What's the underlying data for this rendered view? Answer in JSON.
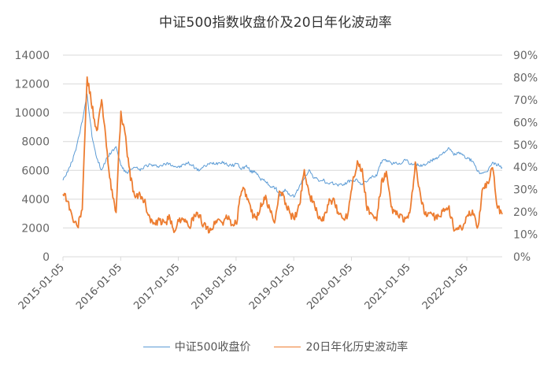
{
  "chart_data": {
    "type": "line",
    "title": "中证500指数收盘价及20日年化波动率",
    "xlabel": "",
    "ylabel_left": "",
    "ylabel_right": "",
    "x_tick_labels": [
      "2015-01-05",
      "2016-01-05",
      "2017-01-05",
      "2018-01-05",
      "2019-01-05",
      "2020-01-05",
      "2021-01-05",
      "2022-01-05"
    ],
    "y_left_ticks": [
      "0",
      "2000",
      "4000",
      "6000",
      "8000",
      "10000",
      "12000",
      "14000"
    ],
    "y_right_ticks": [
      "0%",
      "10%",
      "20%",
      "30%",
      "40%",
      "50%",
      "60%",
      "70%",
      "80%",
      "90%"
    ],
    "ylim_left": [
      0,
      14000
    ],
    "ylim_right": [
      0,
      0.9
    ],
    "grid": true,
    "legend_position": "bottom",
    "x": [
      "2015-01",
      "2015-02",
      "2015-03",
      "2015-04",
      "2015-05",
      "2015-06",
      "2015-07",
      "2015-08",
      "2015-09",
      "2015-10",
      "2015-11",
      "2015-12",
      "2016-01",
      "2016-02",
      "2016-03",
      "2016-04",
      "2016-05",
      "2016-06",
      "2016-07",
      "2016-08",
      "2016-09",
      "2016-10",
      "2016-11",
      "2016-12",
      "2017-01",
      "2017-02",
      "2017-03",
      "2017-04",
      "2017-05",
      "2017-06",
      "2017-07",
      "2017-08",
      "2017-09",
      "2017-10",
      "2017-11",
      "2017-12",
      "2018-01",
      "2018-02",
      "2018-03",
      "2018-04",
      "2018-05",
      "2018-06",
      "2018-07",
      "2018-08",
      "2018-09",
      "2018-10",
      "2018-11",
      "2018-12",
      "2019-01",
      "2019-02",
      "2019-03",
      "2019-04",
      "2019-05",
      "2019-06",
      "2019-07",
      "2019-08",
      "2019-09",
      "2019-10",
      "2019-11",
      "2019-12",
      "2020-01",
      "2020-02",
      "2020-03",
      "2020-04",
      "2020-05",
      "2020-06",
      "2020-07",
      "2020-08",
      "2020-09",
      "2020-10",
      "2020-11",
      "2020-12",
      "2021-01",
      "2021-02",
      "2021-03",
      "2021-04",
      "2021-05",
      "2021-06",
      "2021-07",
      "2021-08",
      "2021-09",
      "2021-10",
      "2021-11",
      "2021-12",
      "2022-01",
      "2022-02",
      "2022-03",
      "2022-04",
      "2022-05",
      "2022-06",
      "2022-07",
      "2022-08"
    ],
    "series": [
      {
        "name": "中证500收盘价",
        "axis": "left",
        "color": "#5b9bd5",
        "values": [
          5400,
          5900,
          6700,
          7900,
          9400,
          11300,
          8400,
          6900,
          6000,
          6800,
          7300,
          7600,
          6400,
          5800,
          6000,
          6200,
          6000,
          6300,
          6400,
          6300,
          6300,
          6400,
          6500,
          6300,
          6200,
          6400,
          6500,
          6300,
          6000,
          6200,
          6400,
          6500,
          6500,
          6600,
          6400,
          6300,
          6500,
          6100,
          6300,
          5900,
          5900,
          5400,
          5200,
          4900,
          4800,
          4300,
          4600,
          4300,
          4200,
          4900,
          5500,
          6000,
          5500,
          5300,
          5300,
          5000,
          5100,
          5000,
          5000,
          5200,
          5300,
          5300,
          5000,
          5300,
          5500,
          5700,
          6600,
          6700,
          6500,
          6500,
          6500,
          6800,
          6400,
          6500,
          6300,
          6400,
          6600,
          6800,
          7000,
          7300,
          7500,
          7100,
          7200,
          7000,
          6800,
          6600,
          5900,
          5700,
          6000,
          6500,
          6400,
          6200
        ]
      },
      {
        "name": "20日年化历史波动率",
        "axis": "right",
        "color": "#ed7d31",
        "values": [
          0.29,
          0.25,
          0.17,
          0.13,
          0.22,
          0.8,
          0.68,
          0.55,
          0.7,
          0.5,
          0.3,
          0.2,
          0.65,
          0.52,
          0.35,
          0.26,
          0.28,
          0.24,
          0.17,
          0.14,
          0.16,
          0.15,
          0.17,
          0.12,
          0.16,
          0.18,
          0.13,
          0.17,
          0.19,
          0.15,
          0.12,
          0.13,
          0.17,
          0.15,
          0.18,
          0.14,
          0.16,
          0.31,
          0.27,
          0.2,
          0.17,
          0.23,
          0.26,
          0.2,
          0.16,
          0.3,
          0.25,
          0.19,
          0.17,
          0.23,
          0.39,
          0.28,
          0.23,
          0.18,
          0.16,
          0.24,
          0.25,
          0.2,
          0.17,
          0.19,
          0.34,
          0.42,
          0.38,
          0.22,
          0.18,
          0.17,
          0.33,
          0.37,
          0.22,
          0.19,
          0.18,
          0.16,
          0.2,
          0.42,
          0.27,
          0.19,
          0.2,
          0.18,
          0.17,
          0.22,
          0.21,
          0.13,
          0.12,
          0.13,
          0.19,
          0.2,
          0.13,
          0.31,
          0.33,
          0.4,
          0.22,
          0.19
        ]
      }
    ]
  },
  "legend": {
    "items": [
      {
        "label": "中证500收盘价",
        "color": "#5b9bd5"
      },
      {
        "label": "20日年化历史波动率",
        "color": "#ed7d31"
      }
    ]
  }
}
